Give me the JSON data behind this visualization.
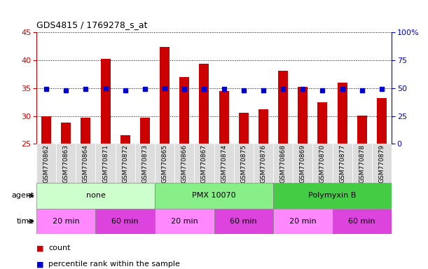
{
  "title": "GDS4815 / 1769278_s_at",
  "samples": [
    "GSM770862",
    "GSM770863",
    "GSM770864",
    "GSM770871",
    "GSM770872",
    "GSM770873",
    "GSM770865",
    "GSM770866",
    "GSM770867",
    "GSM770874",
    "GSM770875",
    "GSM770876",
    "GSM770868",
    "GSM770869",
    "GSM770870",
    "GSM770877",
    "GSM770878",
    "GSM770879"
  ],
  "count_values": [
    30.0,
    28.8,
    29.7,
    40.2,
    26.6,
    29.7,
    42.4,
    37.0,
    39.4,
    34.5,
    30.6,
    31.2,
    38.1,
    35.2,
    32.4,
    36.0,
    30.1,
    33.2
  ],
  "percentile_values": [
    49,
    48,
    49,
    50,
    48,
    49,
    50,
    49,
    49,
    49,
    48,
    48,
    49,
    49,
    48,
    49,
    48,
    49
  ],
  "count_color": "#cc0000",
  "percentile_color": "#0000cc",
  "ylim_left": [
    25,
    45
  ],
  "ylim_right": [
    0,
    100
  ],
  "yticks_left": [
    25,
    30,
    35,
    40,
    45
  ],
  "yticks_right": [
    0,
    25,
    50,
    75,
    100
  ],
  "ytick_labels_right": [
    "0",
    "25",
    "50",
    "75",
    "100%"
  ],
  "agent_groups": [
    {
      "label": "none",
      "start": 0,
      "end": 6,
      "color": "#ccffcc"
    },
    {
      "label": "PMX 10070",
      "start": 6,
      "end": 12,
      "color": "#88ee88"
    },
    {
      "label": "Polymyxin B",
      "start": 12,
      "end": 18,
      "color": "#44cc44"
    }
  ],
  "time_groups": [
    {
      "label": "20 min",
      "start": 0,
      "end": 3,
      "color": "#ff88ff"
    },
    {
      "label": "60 min",
      "start": 3,
      "end": 6,
      "color": "#dd44dd"
    },
    {
      "label": "20 min",
      "start": 6,
      "end": 9,
      "color": "#ff88ff"
    },
    {
      "label": "60 min",
      "start": 9,
      "end": 12,
      "color": "#dd44dd"
    },
    {
      "label": "20 min",
      "start": 12,
      "end": 15,
      "color": "#ff88ff"
    },
    {
      "label": "60 min",
      "start": 15,
      "end": 18,
      "color": "#dd44dd"
    }
  ],
  "agent_label": "agent",
  "time_label": "time",
  "legend_count": "count",
  "legend_percentile": "percentile rank within the sample",
  "background_color": "#ffffff",
  "bar_width": 0.5,
  "marker_size": 5
}
